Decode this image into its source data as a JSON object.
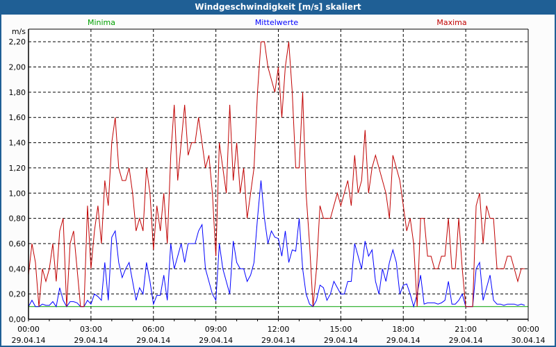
{
  "window": {
    "title": "Windgeschwindigkeit [m/s] skaliert"
  },
  "chart_data": {
    "type": "line",
    "title": "Windgeschwindigkeit [m/s] skaliert",
    "ylabel": "m/s",
    "ylim": [
      0,
      2.3
    ],
    "yticks": [
      "0,00",
      "0,20",
      "0,40",
      "0,60",
      "0,80",
      "1,00",
      "1,20",
      "1,40",
      "1,60",
      "1,80",
      "2,00",
      "2,20"
    ],
    "xlim": [
      "29.04.14 00:00",
      "30.04.14 00:00"
    ],
    "xticks": [
      {
        "time": "00:00",
        "date": "29.04.14"
      },
      {
        "time": "03:00",
        "date": "29.04.14"
      },
      {
        "time": "06:00",
        "date": "29.04.14"
      },
      {
        "time": "09:00",
        "date": "29.04.14"
      },
      {
        "time": "12:00",
        "date": "29.04.14"
      },
      {
        "time": "15:00",
        "date": "29.04.14"
      },
      {
        "time": "18:00",
        "date": "29.04.14"
      },
      {
        "time": "21:00",
        "date": "29.04.14"
      },
      {
        "time": "00:00",
        "date": "30.04.14"
      }
    ],
    "sample_interval_minutes": 10,
    "grid": true,
    "series": [
      {
        "name": "Minima",
        "color": "#00a000",
        "values_constant": 0.1
      },
      {
        "name": "Mittelwerte",
        "color": "#0000ff",
        "values": [
          0.1,
          0.15,
          0.1,
          0.1,
          0.12,
          0.11,
          0.11,
          0.14,
          0.1,
          0.25,
          0.15,
          0.1,
          0.14,
          0.14,
          0.13,
          0.1,
          0.1,
          0.15,
          0.12,
          0.2,
          0.18,
          0.15,
          0.45,
          0.15,
          0.65,
          0.7,
          0.45,
          0.33,
          0.4,
          0.45,
          0.3,
          0.15,
          0.25,
          0.2,
          0.45,
          0.3,
          0.12,
          0.19,
          0.19,
          0.35,
          0.15,
          0.6,
          0.4,
          0.5,
          0.6,
          0.45,
          0.6,
          0.6,
          0.6,
          0.7,
          0.75,
          0.4,
          0.3,
          0.2,
          0.15,
          0.6,
          0.4,
          0.3,
          0.2,
          0.62,
          0.45,
          0.4,
          0.4,
          0.3,
          0.35,
          0.45,
          0.8,
          1.1,
          0.8,
          0.6,
          0.7,
          0.65,
          0.64,
          0.5,
          0.7,
          0.45,
          0.55,
          0.54,
          0.8,
          0.4,
          0.2,
          0.12,
          0.1,
          0.15,
          0.27,
          0.25,
          0.15,
          0.2,
          0.3,
          0.25,
          0.2,
          0.2,
          0.3,
          0.3,
          0.6,
          0.5,
          0.4,
          0.62,
          0.5,
          0.55,
          0.3,
          0.2,
          0.4,
          0.3,
          0.45,
          0.55,
          0.45,
          0.2,
          0.27,
          0.28,
          0.2,
          0.1,
          0.2,
          0.35,
          0.12,
          0.13,
          0.13,
          0.13,
          0.12,
          0.13,
          0.15,
          0.3,
          0.12,
          0.12,
          0.15,
          0.2,
          0.1,
          0.1,
          0.1,
          0.4,
          0.45,
          0.15,
          0.25,
          0.35,
          0.15,
          0.12,
          0.12,
          0.11,
          0.12,
          0.12,
          0.12,
          0.11,
          0.12,
          0.11
        ]
      },
      {
        "name": "Maxima",
        "color": "#c00000",
        "values": [
          0.35,
          0.6,
          0.45,
          0.1,
          0.4,
          0.3,
          0.4,
          0.6,
          0.3,
          0.7,
          0.8,
          0.1,
          0.6,
          0.7,
          0.4,
          0.1,
          0.1,
          0.9,
          0.4,
          0.7,
          0.9,
          0.6,
          1.1,
          0.9,
          1.4,
          1.6,
          1.2,
          1.1,
          1.1,
          1.2,
          1.0,
          0.7,
          0.8,
          0.7,
          1.2,
          1.0,
          0.55,
          0.9,
          0.7,
          1.0,
          0.6,
          1.3,
          1.7,
          1.1,
          1.4,
          1.7,
          1.3,
          1.4,
          1.4,
          1.6,
          1.4,
          1.2,
          1.3,
          1.0,
          0.5,
          1.4,
          1.2,
          1.0,
          1.7,
          1.1,
          1.4,
          1.0,
          1.2,
          0.8,
          1.0,
          1.2,
          1.8,
          2.2,
          2.2,
          2.0,
          1.9,
          1.8,
          2.0,
          1.6,
          2.0,
          2.2,
          1.8,
          1.2,
          1.2,
          1.8,
          1.0,
          0.6,
          0.1,
          0.4,
          0.9,
          0.8,
          0.8,
          0.8,
          0.9,
          1.0,
          0.9,
          1.0,
          1.1,
          0.9,
          1.3,
          1.0,
          1.1,
          1.5,
          1.0,
          1.2,
          1.3,
          1.2,
          1.1,
          1.0,
          0.8,
          1.3,
          1.2,
          1.1,
          0.9,
          0.7,
          0.8,
          0.6,
          0.1,
          0.8,
          0.8,
          0.5,
          0.5,
          0.4,
          0.4,
          0.5,
          0.5,
          0.8,
          0.4,
          0.4,
          0.8,
          0.4,
          0.1,
          0.1,
          0.1,
          0.9,
          1.0,
          0.6,
          0.9,
          0.8,
          0.8,
          0.4,
          0.4,
          0.4,
          0.5,
          0.5,
          0.4,
          0.3,
          0.4,
          0.4
        ]
      }
    ]
  }
}
